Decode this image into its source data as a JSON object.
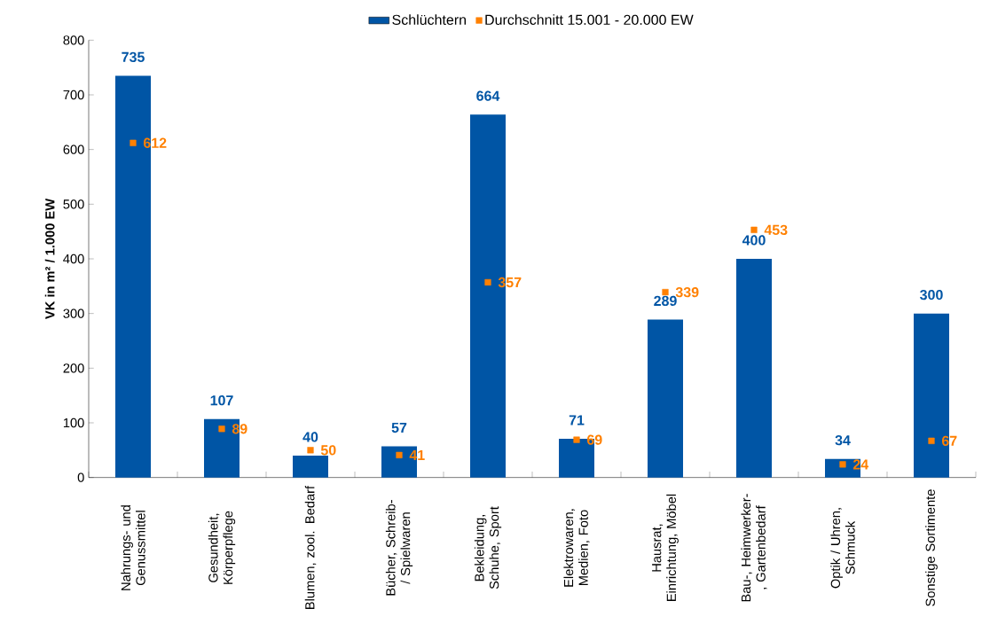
{
  "chart_data": {
    "type": "bar",
    "ylabel": "VK in m² / 1.000 EW",
    "categories": [
      "Nahrungs- und Genussmittel",
      "Gesundheit, Körperpflege",
      "Blumen, zool. Bedarf",
      "Bücher, Schreib- / Spielwaren",
      "Bekleidung, Schuhe, Sport",
      "Elektrowaren, Medien, Foto",
      "Hausrat, Einrichtung, Möbel",
      "Bau-, Heimwerker-, Gartenbedarf",
      "Optik / Uhren, Schmuck",
      "Sonstige Sortimente"
    ],
    "series": [
      {
        "name": "Schlüchtern",
        "color": "#0055a5",
        "values": [
          735,
          107,
          40,
          57,
          664,
          71,
          289,
          400,
          34,
          300
        ]
      },
      {
        "name": "Durchschnitt 15.001 - 20.000 EW",
        "type": "scatter",
        "marker": "square",
        "color": "#ff8000",
        "values": [
          612,
          89,
          50,
          41,
          357,
          69,
          339,
          453,
          24,
          67
        ]
      }
    ],
    "ylim": [
      0,
      800
    ],
    "yticks": [
      0,
      100,
      200,
      300,
      400,
      500,
      600,
      700,
      800
    ],
    "data_labels": true,
    "legend": "top",
    "grid": false
  }
}
